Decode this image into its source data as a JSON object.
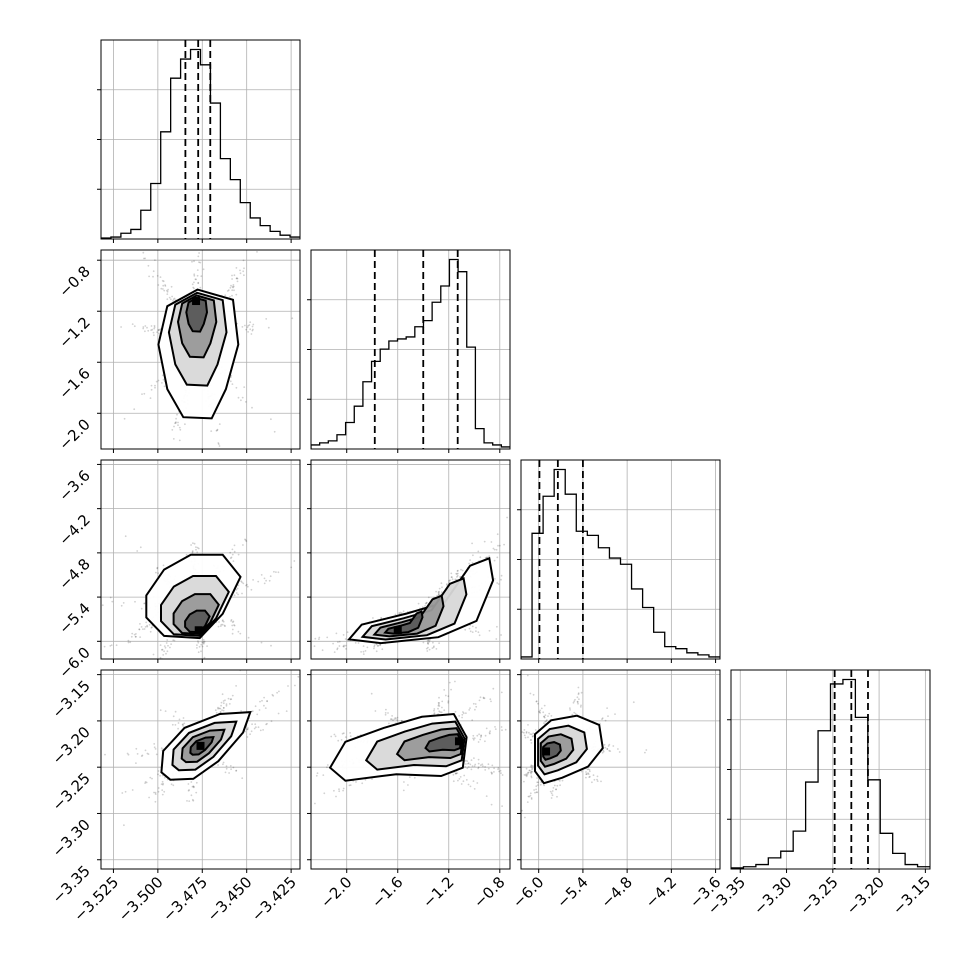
{
  "chart_data": {
    "type": "corner",
    "grid": true,
    "color": "#000000",
    "scatter_color": "#000000",
    "parameters": [
      {
        "range": [
          -3.532,
          -3.42
        ],
        "ticks": [
          -3.525,
          -3.5,
          -3.475,
          -3.45,
          -3.425
        ],
        "tick_labels": [
          "−3.525",
          "−3.500",
          "−3.475",
          "−3.450",
          "−3.425"
        ],
        "quantiles": [
          -3.4845,
          -3.4773,
          -3.4705
        ],
        "histogram": [
          0.5,
          1,
          3,
          5,
          15,
          29,
          56,
          84,
          94,
          99,
          91,
          71,
          42,
          31,
          19,
          11,
          7,
          4,
          2,
          1
        ]
      },
      {
        "range": [
          -2.28,
          -0.72
        ],
        "ticks": [
          -2.0,
          -1.6,
          -1.2,
          -0.8
        ],
        "tick_labels": [
          "−2.0",
          "−1.6",
          "−1.2",
          "−0.8"
        ],
        "quantiles": [
          -1.78,
          -1.4,
          -1.13
        ],
        "histogram": [
          2,
          3,
          4,
          7,
          13,
          21,
          33,
          43,
          49,
          53,
          54,
          55,
          60,
          63,
          72,
          80,
          93,
          87,
          50,
          10,
          3,
          2,
          1
        ]
      },
      {
        "range": [
          -6.24,
          -3.54
        ],
        "ticks": [
          -6.0,
          -5.4,
          -4.8,
          -4.2,
          -3.6
        ],
        "tick_labels": [
          "−6.0",
          "−5.4",
          "−4.8",
          "−4.2",
          "−3.6"
        ],
        "quantiles": [
          -5.99,
          -5.74,
          -5.4
        ],
        "histogram": [
          1,
          61,
          79,
          92,
          80,
          62,
          60,
          54,
          49,
          46,
          34,
          25,
          13,
          6,
          5,
          3,
          2,
          1
        ]
      },
      {
        "range": [
          -3.36,
          -3.145
        ],
        "ticks": [
          -3.35,
          -3.3,
          -3.25,
          -3.2,
          -3.15
        ],
        "tick_labels": [
          "−3.35",
          "−3.30",
          "−3.25",
          "−3.20",
          "−3.15"
        ],
        "quantiles": [
          -3.248,
          -3.23,
          -3.212
        ],
        "histogram": [
          0.5,
          1,
          2,
          5,
          8,
          17,
          39,
          62,
          83,
          85,
          68,
          40,
          16,
          7,
          2,
          1
        ]
      }
    ],
    "pair_plots": [
      {
        "row": 1,
        "col": 0,
        "mode_x": -3.4785,
        "mode_y": -1.12,
        "contours": [
          [
            -3.5,
            -1.35
          ],
          [
            -3.495,
            -1.05
          ],
          [
            -3.478,
            -0.92
          ],
          [
            -3.458,
            -1.0
          ],
          [
            -3.455,
            -1.35
          ],
          [
            -3.462,
            -1.7
          ],
          [
            -3.47,
            -1.93
          ],
          [
            -3.486,
            -1.92
          ],
          [
            -3.495,
            -1.7
          ]
        ]
      },
      {
        "row": 2,
        "col": 0,
        "mode_x": -3.477,
        "mode_y": -5.85,
        "contours": [
          [
            -3.505,
            -5.5
          ],
          [
            -3.495,
            -5.15
          ],
          [
            -3.48,
            -4.95
          ],
          [
            -3.462,
            -4.95
          ],
          [
            -3.452,
            -5.25
          ],
          [
            -3.462,
            -5.75
          ],
          [
            -3.475,
            -6.08
          ],
          [
            -3.495,
            -6.05
          ],
          [
            -3.505,
            -5.8
          ]
        ]
      },
      {
        "row": 3,
        "col": 0,
        "mode_x": -3.476,
        "mode_y": -3.227,
        "contours": [
          [
            -3.498,
            -3.255
          ],
          [
            -3.497,
            -3.232
          ],
          [
            -3.485,
            -3.207
          ],
          [
            -3.465,
            -3.192
          ],
          [
            -3.448,
            -3.19
          ],
          [
            -3.452,
            -3.212
          ],
          [
            -3.466,
            -3.243
          ],
          [
            -3.48,
            -3.262
          ],
          [
            -3.493,
            -3.263
          ]
        ]
      },
      {
        "row": 2,
        "col": 1,
        "mode_x": -1.6,
        "mode_y": -5.85,
        "contours": [
          [
            -2.05,
            -6.05
          ],
          [
            -1.95,
            -5.85
          ],
          [
            -1.6,
            -5.7
          ],
          [
            -1.3,
            -5.55
          ],
          [
            -1.1,
            -5.05
          ],
          [
            -0.95,
            -4.95
          ],
          [
            -0.92,
            -5.25
          ],
          [
            -1.05,
            -5.8
          ],
          [
            -1.35,
            -6.02
          ],
          [
            -1.8,
            -6.1
          ]
        ]
      },
      {
        "row": 3,
        "col": 1,
        "mode_x": -1.12,
        "mode_y": -3.222,
        "contours": [
          [
            -2.02,
            -3.248
          ],
          [
            -1.9,
            -3.22
          ],
          [
            -1.6,
            -3.205
          ],
          [
            -1.3,
            -3.193
          ],
          [
            -1.05,
            -3.19
          ],
          [
            -0.95,
            -3.215
          ],
          [
            -0.98,
            -3.248
          ],
          [
            -1.15,
            -3.257
          ],
          [
            -1.5,
            -3.255
          ],
          [
            -1.9,
            -3.262
          ]
        ]
      },
      {
        "row": 3,
        "col": 2,
        "mode_x": -5.9,
        "mode_y": -3.233,
        "contours": [
          [
            -6.12,
            -3.255
          ],
          [
            -6.12,
            -3.215
          ],
          [
            -5.9,
            -3.2
          ],
          [
            -5.55,
            -3.195
          ],
          [
            -5.25,
            -3.205
          ],
          [
            -5.2,
            -3.23
          ],
          [
            -5.4,
            -3.25
          ],
          [
            -5.75,
            -3.262
          ],
          [
            -6.0,
            -3.268
          ]
        ]
      }
    ]
  }
}
